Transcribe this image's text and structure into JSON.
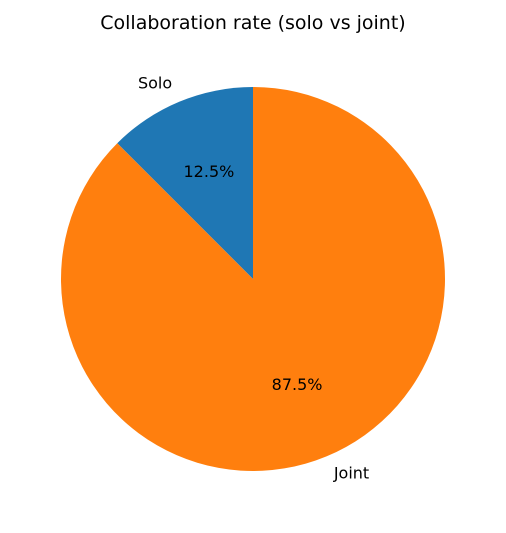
{
  "chart_data": {
    "type": "pie",
    "title": "Collaboration rate (solo vs joint)",
    "categories": [
      "Solo",
      "Joint"
    ],
    "values": [
      12.5,
      87.5
    ],
    "percent_labels": [
      "12.5%",
      "87.5%"
    ],
    "colors": [
      "#1f77b4",
      "#ff7f0e"
    ],
    "start_angle_deg": 90,
    "direction": "counterclockwise",
    "legend": "none"
  }
}
